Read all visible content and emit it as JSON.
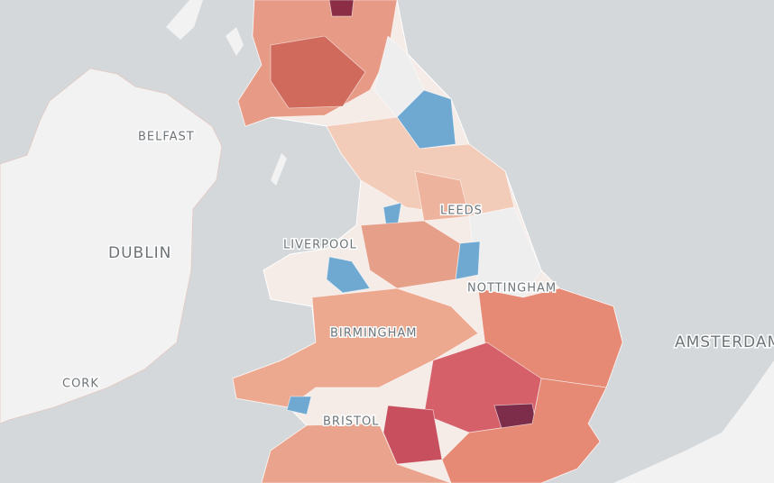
{
  "labels": [
    "BELFAST",
    "DUBLIN",
    "CORK",
    "LIVERPOOL",
    "LEEDS",
    "NOTTINGHAM",
    "BIRMINGHAM",
    "BRISTOL",
    "AMSTERDAM"
  ]
}
